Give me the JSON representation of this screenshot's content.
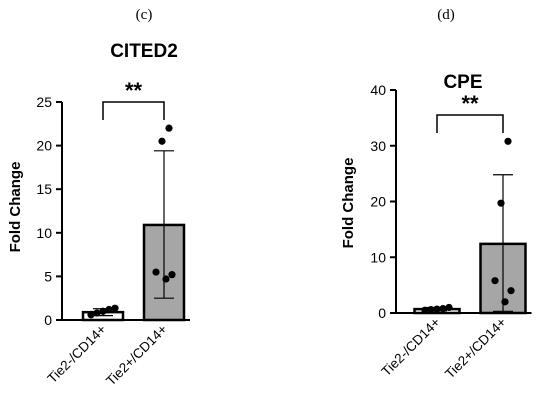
{
  "chart_data": [
    {
      "type": "bar",
      "panel_label": "(c)",
      "title": "CITED2",
      "ylabel": "Fold Change",
      "xlabel": "",
      "ylim": [
        0,
        25
      ],
      "yticks": [
        0,
        5,
        10,
        15,
        20,
        25
      ],
      "categories": [
        "Tie2-/CD14+",
        "Tie2+/CD14+"
      ],
      "values": [
        0.9,
        10.9
      ],
      "error_upper": [
        1.3,
        19.4
      ],
      "error_lower": [
        0.5,
        2.5
      ],
      "points": [
        [
          0.6,
          0.8,
          1.0,
          1.2,
          1.35
        ],
        [
          4.7,
          5.2,
          5.5,
          20.5,
          22.0
        ]
      ],
      "bar_colors": [
        "#ffffff",
        "#a6a6a6"
      ],
      "significance": {
        "label": "**",
        "between": [
          0,
          1
        ]
      }
    },
    {
      "type": "bar",
      "panel_label": "(d)",
      "title": "CPE",
      "ylabel": "Fold Change",
      "xlabel": "",
      "ylim": [
        0,
        40
      ],
      "yticks": [
        0,
        10,
        20,
        30,
        40
      ],
      "categories": [
        "Tie2-/CD14+",
        "Tie2+/CD14+"
      ],
      "values": [
        0.7,
        12.4
      ],
      "error_upper": [
        1.0,
        24.8
      ],
      "error_lower": [
        0.4,
        0.3
      ],
      "points": [
        [
          0.5,
          0.6,
          0.7,
          0.8,
          1.0
        ],
        [
          2.0,
          4.0,
          5.8,
          19.7,
          30.8
        ]
      ],
      "bar_colors": [
        "#ffffff",
        "#a6a6a6"
      ],
      "significance": {
        "label": "**",
        "between": [
          0,
          1
        ]
      }
    }
  ]
}
